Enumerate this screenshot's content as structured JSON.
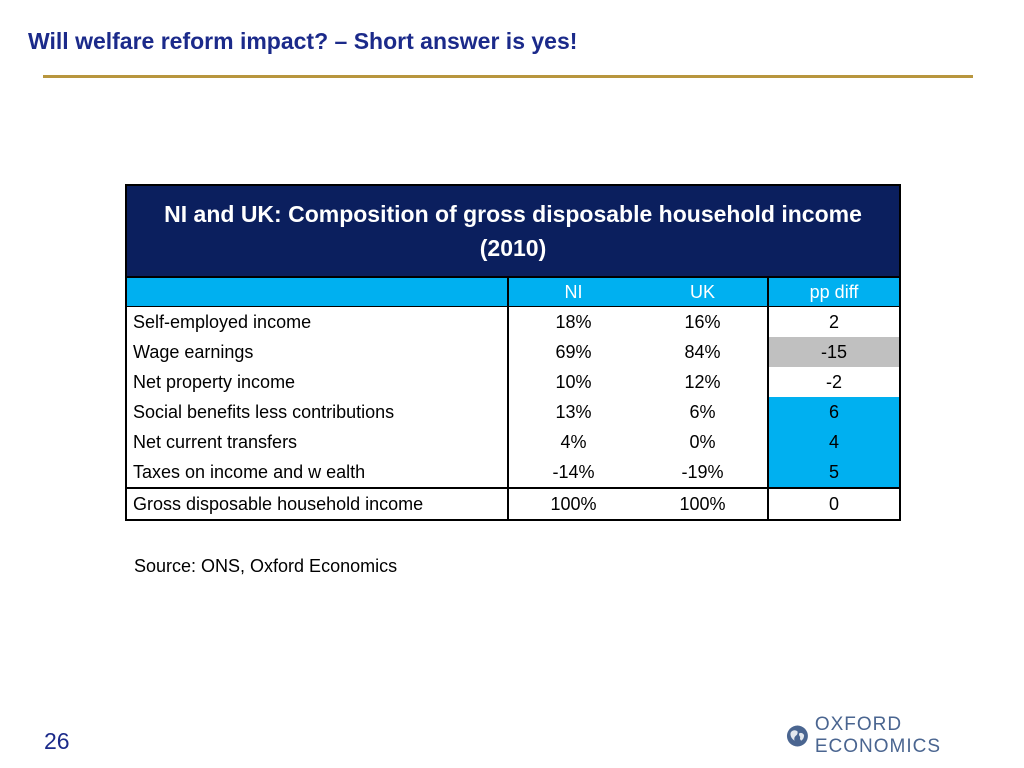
{
  "slide": {
    "title": "Will welfare reform impact? – Short answer is yes!",
    "page_number": "26",
    "source": "Source: ONS, Oxford Economics",
    "logo_text": "OXFORD ECONOMICS"
  },
  "table": {
    "caption": "NI and UK: Composition of gross disposable household income (2010)",
    "columns": [
      "",
      "NI",
      "UK",
      "pp diff"
    ],
    "rows": [
      {
        "label": "Self-employed income",
        "ni": "18%",
        "uk": "16%",
        "diff": "2",
        "highlight": "none"
      },
      {
        "label": "Wage earnings",
        "ni": "69%",
        "uk": "84%",
        "diff": "-15",
        "highlight": "gray"
      },
      {
        "label": "Net property income",
        "ni": "10%",
        "uk": "12%",
        "diff": "-2",
        "highlight": "none"
      },
      {
        "label": "Social benefits less contributions",
        "ni": "13%",
        "uk": "6%",
        "diff": "6",
        "highlight": "blue"
      },
      {
        "label": "Net current transfers",
        "ni": "4%",
        "uk": "0%",
        "diff": "4",
        "highlight": "blue"
      },
      {
        "label": "Taxes on income and w ealth",
        "ni": "-14%",
        "uk": "-19%",
        "diff": "5",
        "highlight": "blue"
      }
    ],
    "total": {
      "label": "Gross disposable household income",
      "ni": "100%",
      "uk": "100%",
      "diff": "0"
    }
  },
  "colors": {
    "title": "#1b2a8a",
    "rule": "#b8963e",
    "caption_bg": "#0b1f5e",
    "header_bg": "#00b0f0",
    "highlight_blue": "#00b0f0",
    "highlight_gray": "#c0c0c0"
  }
}
